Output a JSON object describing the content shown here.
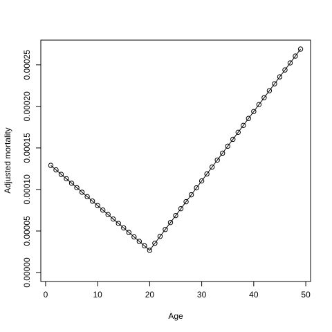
{
  "chart_data": {
    "type": "line",
    "x_label": "Age",
    "y_label": "Adjusted mortality",
    "x": [
      1,
      2,
      3,
      4,
      5,
      6,
      7,
      8,
      9,
      10,
      11,
      12,
      13,
      14,
      15,
      16,
      17,
      18,
      19,
      20,
      21,
      22,
      23,
      24,
      25,
      26,
      27,
      28,
      29,
      30,
      31,
      32,
      33,
      34,
      35,
      36,
      37,
      38,
      39,
      40,
      41,
      42,
      43,
      44,
      45,
      46,
      47,
      48,
      49
    ],
    "series": [
      {
        "color": "#000000",
        "marker": "o",
        "values": [
          0.000129,
          0.0001236,
          0.0001182,
          0.0001129,
          0.0001075,
          0.0001021,
          9.67e-05,
          9.13e-05,
          8.6e-05,
          8.06e-05,
          7.52e-05,
          6.98e-05,
          6.44e-05,
          5.91e-05,
          5.37e-05,
          4.83e-05,
          4.29e-05,
          3.75e-05,
          3.22e-05,
          2.68e-05,
          3.52e-05,
          4.35e-05,
          5.19e-05,
          6.02e-05,
          6.86e-05,
          7.69e-05,
          8.53e-05,
          9.36e-05,
          0.000102,
          0.0001103,
          0.0001187,
          0.000127,
          0.0001354,
          0.0001437,
          0.0001521,
          0.0001604,
          0.0001688,
          0.0001771,
          0.0001855,
          0.0001938,
          0.0002022,
          0.0002105,
          0.0002189,
          0.0002272,
          0.0002356,
          0.0002439,
          0.0002523,
          0.0002606,
          0.000269
        ]
      }
    ],
    "xlim": [
      -0.92,
      50.92
    ],
    "xticks": [
      0,
      10,
      20,
      30,
      40,
      50
    ],
    "ylim": [
      -1.08e-05,
      0.0002798
    ],
    "yticks": [
      {
        "value": 0,
        "label": "0.00000"
      },
      {
        "value": 5e-05,
        "label": "0.00005"
      },
      {
        "value": 0.0001,
        "label": "0.00010"
      },
      {
        "value": 0.00015,
        "label": "0.00015"
      },
      {
        "value": 0.0002,
        "label": "0.00020"
      },
      {
        "value": 0.00025,
        "label": "0.00025"
      }
    ],
    "grid": false
  }
}
